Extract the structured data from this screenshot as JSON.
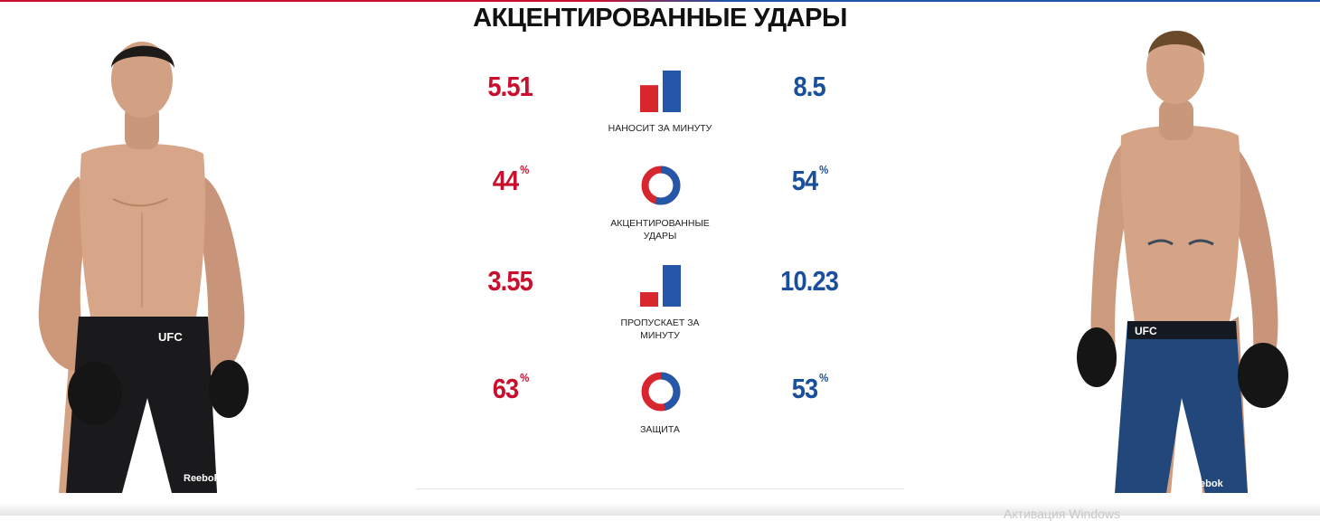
{
  "title": "АКЦЕНТИРОВАННЫЕ УДАРЫ",
  "colors": {
    "red": "#c8102e",
    "blue": "#1a4f9c",
    "ring_red": "#d8262f",
    "ring_blue": "#2457a8"
  },
  "shorts_brand": "UFC",
  "sponsor": "Reebok",
  "rows": [
    {
      "red": "5.51",
      "blue": "8.5",
      "red_unit": "",
      "blue_unit": "",
      "label_lines": [
        "НАНОСИТ ЗА МИНУТУ"
      ],
      "icon": "bar-compare-icon",
      "red_share": 0.39
    },
    {
      "red": "44",
      "blue": "54",
      "red_unit": "%",
      "blue_unit": "%",
      "label_lines": [
        "АКЦЕНТИРОВАННЫЕ",
        "УДАРЫ"
      ],
      "icon": "ring-compare-icon",
      "red_share": 0.45
    },
    {
      "red": "3.55",
      "blue": "10.23",
      "red_unit": "",
      "blue_unit": "",
      "label_lines": [
        "ПРОПУСКАЕТ ЗА",
        "МИНУТУ"
      ],
      "icon": "bar-compare-icon",
      "red_share": 0.26
    },
    {
      "red": "63",
      "blue": "53",
      "red_unit": "%",
      "blue_unit": "%",
      "label_lines": [
        "ЗАЩИТА"
      ],
      "icon": "ring-compare-icon",
      "red_share": 0.54
    }
  ],
  "watermark": "Активация Windows"
}
